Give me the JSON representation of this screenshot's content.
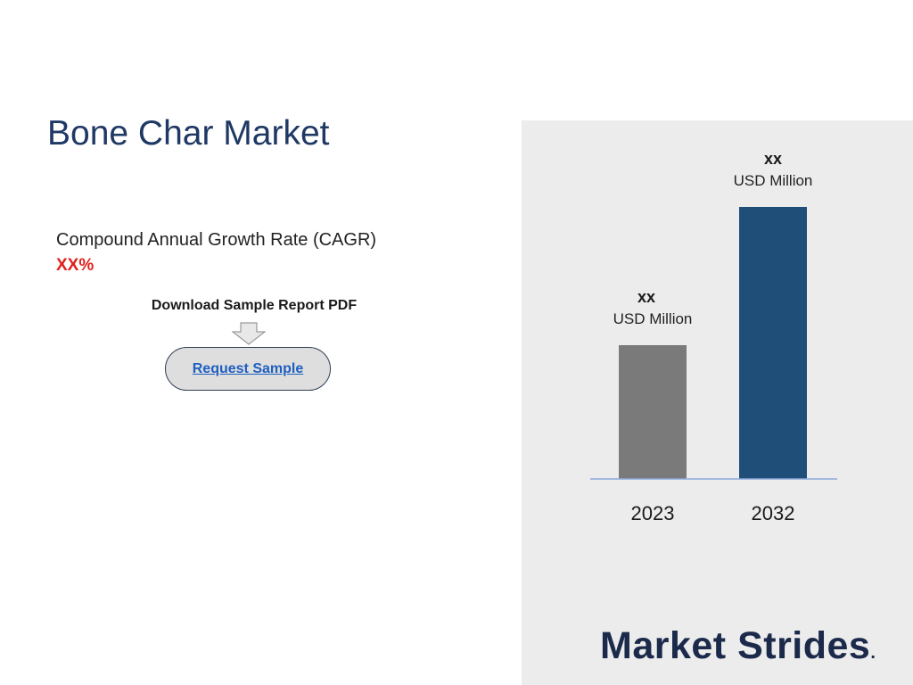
{
  "title": "Bone Char Market",
  "cagr": {
    "label": "Compound Annual Growth Rate (CAGR)",
    "value": "XX%"
  },
  "download": {
    "label": "Download Sample Report PDF",
    "arrow_icon": "down-arrow-icon",
    "button_label": "Request Sample"
  },
  "brand": {
    "name": "Market Strides",
    "mark": "."
  },
  "colors": {
    "title": "#1f3864",
    "cagr_value": "#e0201b",
    "panel_bg": "#ececec",
    "bar_2023": "#7a7a7a",
    "bar_2032": "#1f4e79",
    "baseline": "#8ea9db",
    "link": "#1f5fbf"
  },
  "chart_data": {
    "type": "bar",
    "categories": [
      "2023",
      "2032"
    ],
    "values": [
      150,
      305
    ],
    "value_labels": [
      {
        "value": "xx",
        "unit": "USD Million"
      },
      {
        "value": "xx",
        "unit": "USD Million"
      }
    ],
    "title": "",
    "xlabel": "",
    "ylabel": "",
    "grid": false
  }
}
